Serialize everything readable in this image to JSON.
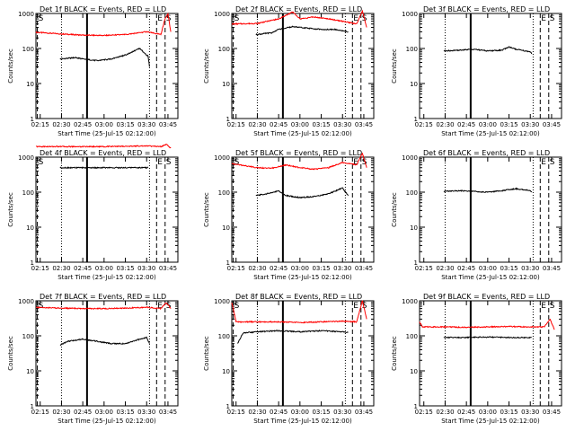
{
  "chart_data": [
    {
      "type": "line",
      "title": "Det 1f BLACK = Events, RED = LLD",
      "xlabel": "Start Time (25-Jul-15 02:12:00)",
      "ylabel": "Counts/sec",
      "yscale": "log",
      "ylim": [
        1,
        1000
      ],
      "xlim": [
        "02:12",
        "03:52"
      ],
      "xticks": [
        "02:15",
        "02:30",
        "02:45",
        "03:00",
        "03:15",
        "03:30",
        "03:45"
      ],
      "yticks": [
        "1",
        "10",
        "100",
        "1000"
      ],
      "markers": [
        {
          "label": "S",
          "time": "02:13"
        },
        {
          "label": "E",
          "time": "03:37"
        },
        {
          "label": "S",
          "time": "03:43"
        }
      ],
      "series": [
        {
          "color": "#ff0000",
          "x": [
            "02:12",
            "02:30",
            "02:45",
            "03:00",
            "03:15",
            "03:30",
            "03:40",
            "03:43",
            "03:45",
            "03:47"
          ],
          "y": [
            290,
            260,
            240,
            235,
            250,
            300,
            250,
            700,
            1000,
            300
          ]
        },
        {
          "color": "#000000",
          "x": [
            "02:29",
            "02:40",
            "02:45",
            "02:55",
            "03:05",
            "03:15",
            "03:25",
            "03:31",
            "03:32"
          ],
          "y": [
            50,
            55,
            50,
            45,
            50,
            65,
            100,
            60,
            30
          ]
        }
      ]
    },
    {
      "type": "line",
      "title": "Det 2f BLACK = Events, RED = LLD",
      "xlabel": "Start Time (25-Jul-15 02:12:00)",
      "ylabel": "Counts/sec",
      "yscale": "log",
      "ylim": [
        1,
        1000
      ],
      "xlim": [
        "02:12",
        "03:52"
      ],
      "xticks": [
        "02:15",
        "02:30",
        "02:45",
        "03:00",
        "03:15",
        "03:30",
        "03:45"
      ],
      "yticks": [
        "1",
        "10",
        "100",
        "1000"
      ],
      "markers": [
        {
          "label": "S",
          "time": "02:13"
        },
        {
          "label": "E",
          "time": "03:37"
        },
        {
          "label": "S",
          "time": "03:43"
        }
      ],
      "series": [
        {
          "color": "#ff0000",
          "x": [
            "02:12",
            "02:30",
            "02:45",
            "02:55",
            "03:00",
            "03:10",
            "03:20",
            "03:30",
            "03:40",
            "03:44",
            "03:47"
          ],
          "y": [
            500,
            520,
            700,
            1100,
            700,
            800,
            700,
            600,
            500,
            1200,
            400
          ]
        },
        {
          "color": "#000000",
          "x": [
            "02:29",
            "02:40",
            "02:45",
            "02:55",
            "03:05",
            "03:15",
            "03:25",
            "03:34"
          ],
          "y": [
            250,
            280,
            350,
            420,
            380,
            350,
            350,
            300
          ]
        }
      ]
    },
    {
      "type": "line",
      "title": "Det 3f BLACK = Events, RED = LLD",
      "xlabel": "Start Time (25-Jul-15 02:12:00)",
      "ylabel": "Counts/sec",
      "yscale": "log",
      "ylim": [
        1,
        1000
      ],
      "xlim": [
        "02:12",
        "03:52"
      ],
      "xticks": [
        "02:15",
        "02:30",
        "02:45",
        "03:00",
        "03:15",
        "03:30",
        "03:45"
      ],
      "yticks": [
        "1",
        "10",
        "100",
        "1000"
      ],
      "markers": [
        {
          "label": "E",
          "time": "03:37"
        },
        {
          "label": "S",
          "time": "03:43"
        }
      ],
      "series": [
        {
          "color": "#000000",
          "x": [
            "02:29",
            "02:40",
            "02:50",
            "03:00",
            "03:10",
            "03:15",
            "03:20",
            "03:30",
            "03:31"
          ],
          "y": [
            85,
            90,
            95,
            85,
            90,
            110,
            95,
            80,
            70
          ]
        }
      ]
    },
    {
      "type": "line",
      "title": "Det 4f BLACK = Events, RED = LLD",
      "xlabel": "Start Time (25-Jul-15 02:12:00)",
      "ylabel": "Counts/sec",
      "yscale": "log",
      "ylim": [
        1,
        1000
      ],
      "xlim": [
        "02:12",
        "03:52"
      ],
      "xticks": [
        "02:15",
        "02:30",
        "02:45",
        "03:00",
        "03:15",
        "03:30",
        "03:45"
      ],
      "yticks": [
        "1",
        "10",
        "100",
        "1000"
      ],
      "markers": [
        {
          "label": "S",
          "time": "02:13"
        },
        {
          "label": "E",
          "time": "03:37"
        },
        {
          "label": "S",
          "time": "03:43"
        }
      ],
      "series": [
        {
          "color": "#ff0000",
          "x": [
            "02:12",
            "02:30",
            "02:45",
            "03:00",
            "03:15",
            "03:30",
            "03:40",
            "03:44",
            "03:47"
          ],
          "y": [
            2000,
            2000,
            2000,
            2000,
            2050,
            2100,
            2000,
            2300,
            1800
          ]
        },
        {
          "color": "#000000",
          "x": [
            "02:29",
            "02:45",
            "03:00",
            "03:15",
            "03:31"
          ],
          "y": [
            500,
            500,
            500,
            500,
            500
          ]
        }
      ]
    },
    {
      "type": "line",
      "title": "Det 5f BLACK = Events, RED = LLD",
      "xlabel": "Start Time (25-Jul-15 02:12:00)",
      "ylabel": "Counts/sec",
      "yscale": "log",
      "ylim": [
        1,
        1000
      ],
      "xlim": [
        "02:12",
        "03:52"
      ],
      "xticks": [
        "02:15",
        "02:30",
        "02:45",
        "03:00",
        "03:15",
        "03:30",
        "03:45"
      ],
      "yticks": [
        "1",
        "10",
        "100",
        "1000"
      ],
      "markers": [
        {
          "label": "S",
          "time": "02:13"
        },
        {
          "label": "E",
          "time": "03:37"
        },
        {
          "label": "S",
          "time": "03:43"
        }
      ],
      "series": [
        {
          "color": "#ff0000",
          "x": [
            "02:12",
            "02:30",
            "02:40",
            "02:50",
            "03:00",
            "03:10",
            "03:20",
            "03:30",
            "03:40",
            "03:44",
            "03:47"
          ],
          "y": [
            650,
            500,
            480,
            600,
            500,
            450,
            500,
            700,
            600,
            1300,
            500
          ]
        },
        {
          "color": "#000000",
          "x": [
            "02:29",
            "02:40",
            "02:45",
            "02:50",
            "03:00",
            "03:10",
            "03:20",
            "03:30",
            "03:34"
          ],
          "y": [
            80,
            95,
            110,
            80,
            70,
            75,
            90,
            130,
            80
          ]
        }
      ]
    },
    {
      "type": "line",
      "title": "Det 6f BLACK = Events, RED = LLD",
      "xlabel": "Start Time (25-Jul-15 02:12:00)",
      "ylabel": "Counts/sec",
      "yscale": "log",
      "ylim": [
        1,
        1000
      ],
      "xlim": [
        "02:12",
        "03:52"
      ],
      "xticks": [
        "02:15",
        "02:30",
        "02:45",
        "03:00",
        "03:15",
        "03:30",
        "03:45"
      ],
      "yticks": [
        "1",
        "10",
        "100",
        "1000"
      ],
      "markers": [
        {
          "label": "E",
          "time": "03:37"
        },
        {
          "label": "S",
          "time": "03:43"
        }
      ],
      "series": [
        {
          "color": "#000000",
          "x": [
            "02:29",
            "02:40",
            "02:50",
            "03:00",
            "03:10",
            "03:20",
            "03:30",
            "03:31"
          ],
          "y": [
            105,
            110,
            105,
            100,
            110,
            125,
            110,
            100
          ]
        }
      ]
    },
    {
      "type": "line",
      "title": "Det 7f BLACK = Events, RED = LLD",
      "xlabel": "Start Time (25-Jul-15 02:12:00)",
      "ylabel": "Counts/sec",
      "yscale": "log",
      "ylim": [
        1,
        1000
      ],
      "xlim": [
        "02:12",
        "03:52"
      ],
      "xticks": [
        "02:15",
        "02:30",
        "02:45",
        "03:00",
        "03:15",
        "03:30",
        "03:45"
      ],
      "yticks": [
        "1",
        "10",
        "100",
        "1000"
      ],
      "markers": [
        {
          "label": "S",
          "time": "02:13"
        },
        {
          "label": "E",
          "time": "03:37"
        },
        {
          "label": "S",
          "time": "03:43"
        }
      ],
      "series": [
        {
          "color": "#ff0000",
          "x": [
            "02:12",
            "02:30",
            "02:45",
            "03:00",
            "03:15",
            "03:30",
            "03:40",
            "03:44",
            "03:47"
          ],
          "y": [
            650,
            620,
            600,
            600,
            620,
            650,
            600,
            900,
            600
          ]
        },
        {
          "color": "#000000",
          "x": [
            "02:29",
            "02:35",
            "02:45",
            "02:55",
            "03:05",
            "03:15",
            "03:25",
            "03:30",
            "03:32"
          ],
          "y": [
            55,
            70,
            80,
            70,
            60,
            60,
            80,
            90,
            60
          ]
        }
      ]
    },
    {
      "type": "line",
      "title": "Det 8f BLACK = Events, RED = LLD",
      "xlabel": "Start Time (25-Jul-15 02:12:00)",
      "ylabel": "Counts/sec",
      "yscale": "log",
      "ylim": [
        1,
        1000
      ],
      "xlim": [
        "02:12",
        "03:52"
      ],
      "xticks": [
        "02:15",
        "02:30",
        "02:45",
        "03:00",
        "03:15",
        "03:30",
        "03:45"
      ],
      "yticks": [
        "1",
        "10",
        "100",
        "1000"
      ],
      "markers": [
        {
          "label": "S",
          "time": "02:13"
        },
        {
          "label": "E",
          "time": "03:37"
        },
        {
          "label": "S",
          "time": "03:43"
        }
      ],
      "series": [
        {
          "color": "#ff0000",
          "x": [
            "02:12",
            "02:15",
            "02:30",
            "02:45",
            "03:00",
            "03:15",
            "03:30",
            "03:40",
            "03:44",
            "03:47"
          ],
          "y": [
            900,
            250,
            250,
            250,
            240,
            250,
            260,
            250,
            1000,
            300
          ]
        },
        {
          "color": "#000000",
          "x": [
            "02:16",
            "02:20",
            "02:30",
            "02:45",
            "03:00",
            "03:15",
            "03:30",
            "03:34"
          ],
          "y": [
            60,
            120,
            130,
            140,
            130,
            140,
            130,
            125
          ]
        }
      ]
    },
    {
      "type": "line",
      "title": "Det 9f BLACK = Events, RED = LLD",
      "xlabel": "Start Time (25-Jul-15 02:12:00)",
      "ylabel": "Counts/sec",
      "yscale": "log",
      "ylim": [
        1,
        1000
      ],
      "xlim": [
        "02:12",
        "03:52"
      ],
      "xticks": [
        "02:15",
        "02:30",
        "02:45",
        "03:00",
        "03:15",
        "03:30",
        "03:45"
      ],
      "yticks": [
        "1",
        "10",
        "100",
        "1000"
      ],
      "markers": [
        {
          "label": "E",
          "time": "03:37"
        },
        {
          "label": "S",
          "time": "03:43"
        }
      ],
      "series": [
        {
          "color": "#ff0000",
          "x": [
            "02:12",
            "02:14",
            "02:30",
            "02:45",
            "03:00",
            "03:15",
            "03:30",
            "03:40",
            "03:44",
            "03:47"
          ],
          "y": [
            250,
            180,
            180,
            175,
            180,
            185,
            180,
            180,
            300,
            150
          ]
        },
        {
          "color": "#000000",
          "x": [
            "02:29",
            "02:45",
            "03:00",
            "03:15",
            "03:30",
            "03:31"
          ],
          "y": [
            90,
            90,
            92,
            90,
            88,
            90
          ]
        }
      ]
    }
  ]
}
